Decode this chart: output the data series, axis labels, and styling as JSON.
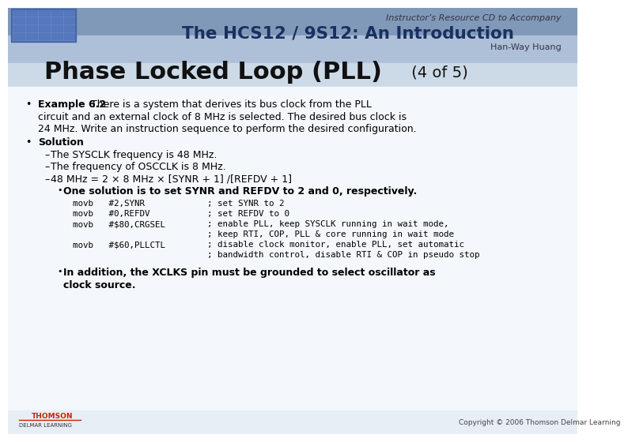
{
  "title_main": "Phase Locked Loop (PLL)",
  "title_sub": " (4 of 5)",
  "header_line1": "Instructor’s Resource CD to Accompany",
  "header_line2": "The HCS12 / 9S12: An Introduction",
  "header_line3": "Han-Way Huang",
  "copyright": "Copyright © 2006 Thomson Delmar Learning",
  "bg_body": "#f0f4fa",
  "header_top_color": "#7a96b8",
  "header_mid_color": "#c0d0e4",
  "header_low_color": "#dce8f4",
  "white": "#ffffff",
  "bullet1_bold": "Example 6.2",
  "bullet1_rest": " There is a system that derives its bus clock from the PLL",
  "bullet1_line2": "circuit and an external clock of 8 MHz is selected. The desired bus clock is",
  "bullet1_line3": "24 MHz. Write an instruction sequence to perform the desired configuration.",
  "bullet2_bold": "Solution",
  "dash1": "The SYSCLK frequency is 48 MHz.",
  "dash2": "The frequency of OSCCLK is 8 MHz.",
  "dash3": "48 MHz = 2 × 8 MHz × [SYNR + 1] /[REFDV + 1]",
  "sub_bullet": "One solution is to set SYNR and REFDV to 2 and 0, respectively.",
  "code_lines": [
    [
      "movb   #2,SYNR",
      "; set SYNR to 2"
    ],
    [
      "movb   #0,REFDV",
      "; set REFDV to 0"
    ],
    [
      "movb   #$80,CRGSEL",
      "; enable PLL, keep SYSCLK running in wait mode,"
    ],
    [
      "",
      "; keep RTI, COP, PLL & core running in wait mode"
    ],
    [
      "movb   #$60,PLLCTL",
      "; disable clock monitor, enable PLL, set automatic"
    ],
    [
      "",
      "; bandwidth control, disable RTI & COP in pseudo stop"
    ]
  ],
  "final_line1": "In addition, the XCLKS pin must be grounded to select oscillator as",
  "final_line2": "clock source."
}
